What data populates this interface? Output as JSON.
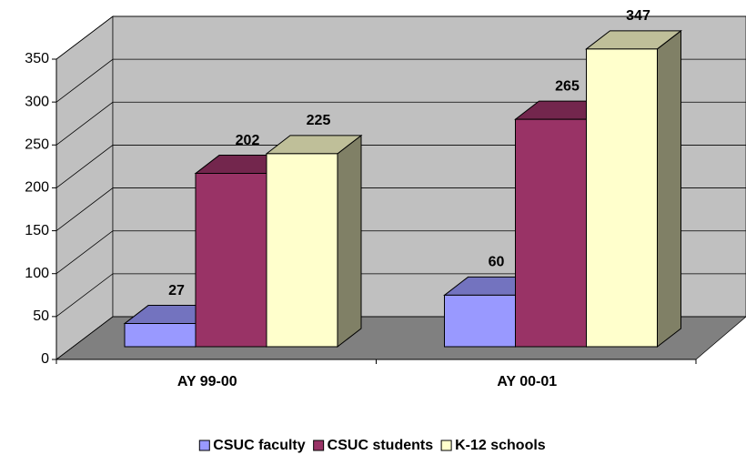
{
  "chart_data": {
    "type": "bar3d",
    "categories": [
      "AY 99-00",
      "AY 00-01"
    ],
    "series": [
      {
        "name": "CSUC faculty",
        "color": "#9999ff",
        "values": [
          27,
          60
        ]
      },
      {
        "name": "CSUC students",
        "color": "#993366",
        "values": [
          202,
          265
        ]
      },
      {
        "name": "K-12 schools",
        "color": "#ffffcc",
        "values": [
          225,
          347
        ]
      }
    ],
    "ylim": [
      0,
      350
    ],
    "yticks": [
      0,
      50,
      100,
      150,
      200,
      250,
      300,
      350
    ],
    "grid": true,
    "legend": "bottom",
    "data_labels": true
  }
}
